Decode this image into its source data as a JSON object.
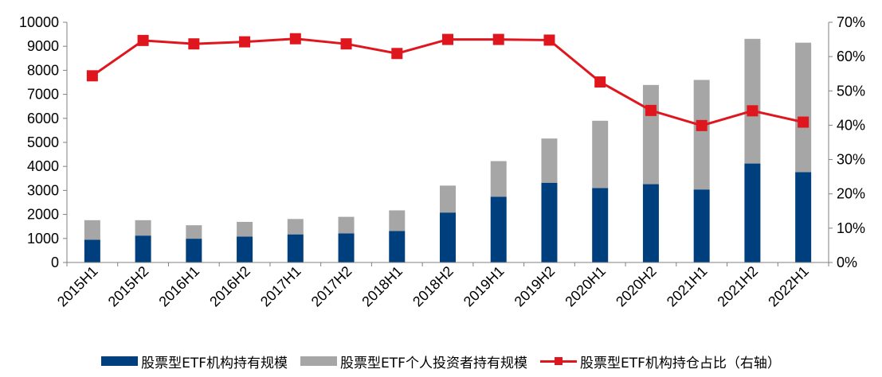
{
  "colors": {
    "institutional": "#003F7D",
    "individual": "#A6A6A6",
    "ratio": "#E0161E",
    "axis": "#808080"
  },
  "chart_data": {
    "type": "bar",
    "stacked": true,
    "categories": [
      "2015H1",
      "2015H2",
      "2016H1",
      "2016H2",
      "2017H1",
      "2017H2",
      "2018H1",
      "2018H2",
      "2019H1",
      "2019H2",
      "2020H1",
      "2020H2",
      "2021H1",
      "2021H2",
      "2022H1"
    ],
    "series": [
      {
        "name": "股票型ETF机构持有规模",
        "type": "bar",
        "axis": "left",
        "values": [
          950,
          1120,
          990,
          1080,
          1170,
          1210,
          1310,
          2080,
          2740,
          3320,
          3100,
          3260,
          3040,
          4120,
          3760
        ]
      },
      {
        "name": "股票型ETF个人投资者持有规模",
        "type": "bar",
        "axis": "left",
        "values": [
          810,
          640,
          560,
          610,
          640,
          690,
          860,
          1120,
          1480,
          1840,
          2800,
          4130,
          4560,
          5190,
          5390
        ]
      },
      {
        "name": "股票型ETF机构持仓占比（右轴）",
        "type": "line",
        "axis": "right",
        "values": [
          0.544,
          0.647,
          0.637,
          0.643,
          0.652,
          0.637,
          0.609,
          0.65,
          0.65,
          0.648,
          0.526,
          0.443,
          0.399,
          0.442,
          0.409
        ]
      }
    ],
    "yleft": {
      "min": 0,
      "max": 10000,
      "ticks": [
        "0",
        "1000",
        "2000",
        "3000",
        "4000",
        "5000",
        "6000",
        "7000",
        "8000",
        "9000",
        "10000"
      ]
    },
    "yright": {
      "min": 0,
      "max": 0.7,
      "ticks": [
        "0%",
        "10%",
        "20%",
        "30%",
        "40%",
        "50%",
        "60%",
        "70%"
      ]
    },
    "legend_position": "bottom",
    "grid": false
  }
}
